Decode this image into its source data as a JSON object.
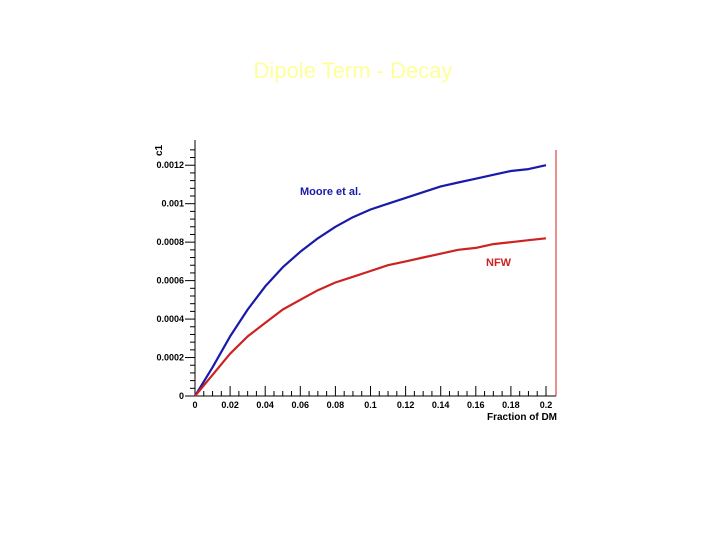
{
  "title": "Dipole Term - Decay",
  "colors": {
    "title": "#ffff99",
    "moore": "#1a1aaa",
    "nfw": "#cc2222",
    "axis": "#000000",
    "right_frame": "#cc2222"
  },
  "chart_data": {
    "type": "line",
    "title": "Dipole Term - Decay",
    "xlabel": "Fraction of DM",
    "ylabel": "c1",
    "xlim": [
      0,
      0.2
    ],
    "ylim": [
      0,
      0.0013
    ],
    "x_ticks": [
      0,
      0.02,
      0.04,
      0.06,
      0.08,
      0.1,
      0.12,
      0.14,
      0.16,
      0.18,
      0.2
    ],
    "x_tick_labels": [
      "0",
      "0.02",
      "0.04",
      "0.06",
      "0.08",
      "0.1",
      "0.12",
      "0.14",
      "0.16",
      "0.18",
      "0.2"
    ],
    "y_ticks": [
      0,
      0.0002,
      0.0004,
      0.0006,
      0.0008,
      0.001,
      0.0012
    ],
    "y_tick_labels": [
      "0",
      "0.0002",
      "0.0004",
      "0.0006",
      "0.0008",
      "0.001",
      "0.0012"
    ],
    "grid": false,
    "series": [
      {
        "name": "Moore et al.",
        "color": "#1a1aaa",
        "x": [
          0,
          0.01,
          0.02,
          0.03,
          0.04,
          0.05,
          0.06,
          0.07,
          0.08,
          0.09,
          0.1,
          0.11,
          0.12,
          0.13,
          0.14,
          0.15,
          0.16,
          0.17,
          0.18,
          0.19,
          0.2
        ],
        "y": [
          0,
          0.00015,
          0.00031,
          0.00045,
          0.00057,
          0.00067,
          0.00075,
          0.00082,
          0.00088,
          0.00093,
          0.00097,
          0.001,
          0.00103,
          0.00106,
          0.00109,
          0.00111,
          0.00113,
          0.00115,
          0.00117,
          0.00118,
          0.0012
        ]
      },
      {
        "name": "NFW",
        "color": "#cc2222",
        "x": [
          0,
          0.01,
          0.02,
          0.03,
          0.04,
          0.05,
          0.06,
          0.07,
          0.08,
          0.09,
          0.1,
          0.11,
          0.12,
          0.13,
          0.14,
          0.15,
          0.16,
          0.17,
          0.18,
          0.19,
          0.2
        ],
        "y": [
          0,
          0.00011,
          0.00022,
          0.00031,
          0.00038,
          0.00045,
          0.0005,
          0.00055,
          0.00059,
          0.00062,
          0.00065,
          0.00068,
          0.0007,
          0.00072,
          0.00074,
          0.00076,
          0.00077,
          0.00079,
          0.0008,
          0.00081,
          0.00082
        ]
      }
    ]
  }
}
